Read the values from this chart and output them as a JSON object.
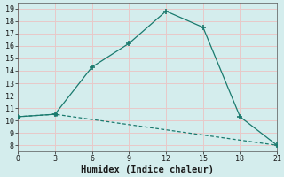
{
  "xlabel": "Humidex (Indice chaleur)",
  "line1_x": [
    0,
    3,
    6,
    9,
    12,
    15,
    18,
    21
  ],
  "line1_y": [
    10.3,
    10.5,
    14.3,
    16.2,
    18.8,
    17.5,
    10.3,
    8.0
  ],
  "line2_x": [
    0,
    3,
    21
  ],
  "line2_y": [
    10.3,
    10.5,
    8.0
  ],
  "color": "#1a7a6e",
  "bg_color": "#d4eded",
  "grid_color": "#e8c8c8",
  "ylim_min": 7.5,
  "ylim_max": 19.5,
  "xlim_min": 0,
  "xlim_max": 21,
  "yticks": [
    8,
    9,
    10,
    11,
    12,
    13,
    14,
    15,
    16,
    17,
    18,
    19
  ],
  "xticks": [
    0,
    3,
    6,
    9,
    12,
    15,
    18,
    21
  ],
  "tick_fontsize": 6,
  "xlabel_fontsize": 7.5
}
